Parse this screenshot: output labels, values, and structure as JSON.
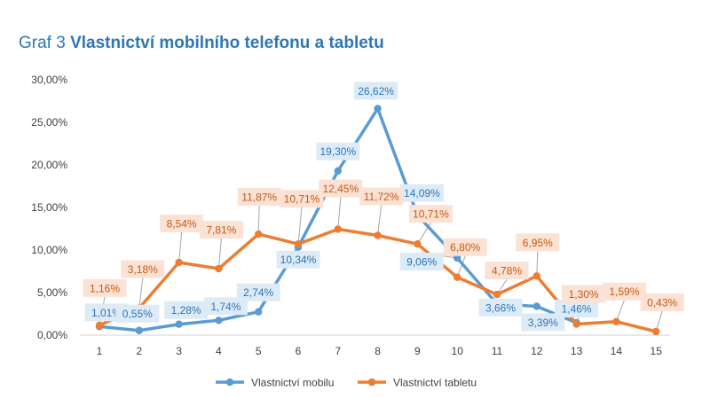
{
  "title": {
    "prefix": "Graf 3",
    "main": "Vlastnictví mobilního telefonu a tabletu"
  },
  "chart_data": {
    "type": "line",
    "x": [
      1,
      2,
      3,
      4,
      5,
      6,
      7,
      8,
      9,
      10,
      11,
      12,
      13,
      14,
      15
    ],
    "ylim": [
      0,
      30
    ],
    "yticks": [
      "0,00%",
      "5,00%",
      "10,00%",
      "15,00%",
      "20,00%",
      "25,00%",
      "30,00%"
    ],
    "xticks": [
      "1",
      "2",
      "3",
      "4",
      "5",
      "6",
      "7",
      "8",
      "9",
      "10",
      "11",
      "12",
      "13",
      "14",
      "15"
    ],
    "grid": false,
    "legend_position": "bottom",
    "series": [
      {
        "name": "Vlastnictví mobilu",
        "color": "#5b9bd5",
        "label_bg": "#ddebf7",
        "label_color": "#2e75b6",
        "values": [
          1.01,
          0.55,
          1.28,
          1.74,
          2.74,
          10.34,
          19.3,
          26.62,
          14.09,
          9.06,
          3.66,
          3.39,
          1.46,
          null,
          null
        ],
        "labels": [
          "1,01%",
          "0,55%",
          "1,28%",
          "1,74%",
          "2,74%",
          "10,34%",
          "19,30%",
          "26,62%",
          "14,09%",
          "9,06%",
          "3,66%",
          "3,39%",
          "1,46%",
          null,
          null
        ]
      },
      {
        "name": "Vlastnictví tabletu",
        "color": "#ed7d31",
        "label_bg": "#fbe2d5",
        "label_color": "#c55a11",
        "values": [
          1.16,
          3.18,
          8.54,
          7.81,
          11.87,
          10.71,
          12.45,
          11.72,
          10.71,
          6.8,
          4.78,
          6.95,
          1.3,
          1.59,
          0.43
        ],
        "labels": [
          "1,16%",
          "3,18%",
          "8,54%",
          "7,81%",
          "11,87%",
          "10,71%",
          "12,45%",
          "11,72%",
          "10,71%",
          "6,80%",
          "4,78%",
          "6,95%",
          "1,30%",
          "1,59%",
          "0,43%"
        ]
      }
    ]
  }
}
